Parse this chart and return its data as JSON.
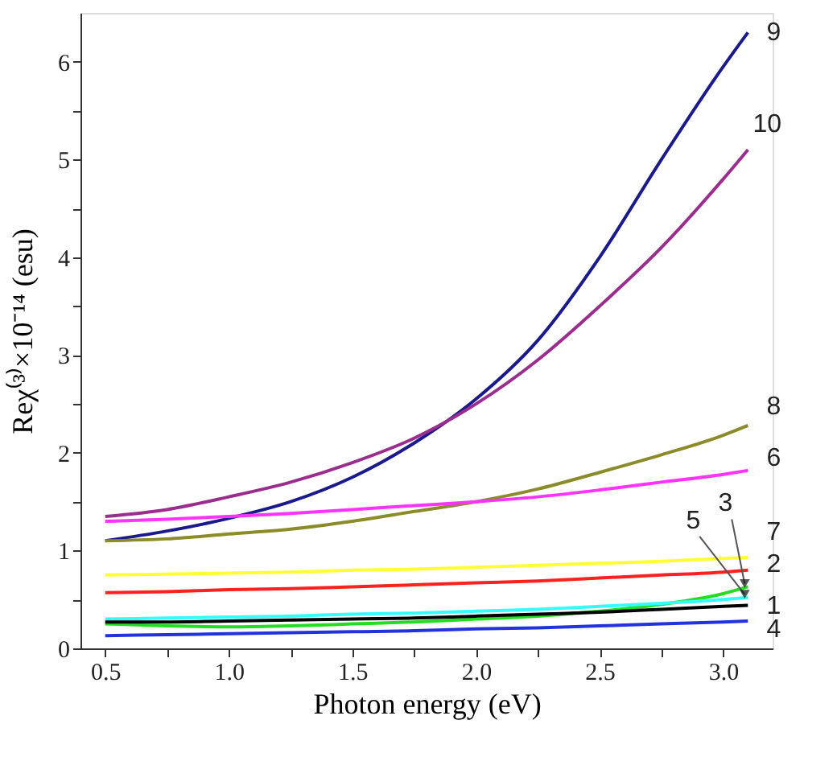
{
  "chart_data": {
    "type": "line",
    "xlabel": "Photon energy (eV)",
    "ylabel": "Reχ⁽³⁾×10⁻¹⁴ (esu)",
    "x": [
      0.5,
      0.75,
      1.0,
      1.25,
      1.5,
      1.75,
      2.0,
      2.25,
      2.5,
      2.75,
      3.0,
      3.1
    ],
    "series": [
      {
        "name": "9",
        "color": "#1a1a8c",
        "values": [
          1.1,
          1.2,
          1.33,
          1.5,
          1.75,
          2.1,
          2.55,
          3.15,
          4.0,
          5.0,
          5.95,
          6.3
        ]
      },
      {
        "name": "10",
        "color": "#9b2d8f",
        "values": [
          1.35,
          1.42,
          1.55,
          1.7,
          1.9,
          2.15,
          2.5,
          2.95,
          3.5,
          4.1,
          4.8,
          5.1
        ]
      },
      {
        "name": "8",
        "color": "#8b8b2a",
        "values": [
          1.1,
          1.12,
          1.17,
          1.22,
          1.3,
          1.4,
          1.5,
          1.63,
          1.8,
          1.98,
          2.18,
          2.28
        ]
      },
      {
        "name": "6",
        "color": "#ff33ff",
        "values": [
          1.3,
          1.32,
          1.35,
          1.38,
          1.42,
          1.46,
          1.5,
          1.55,
          1.62,
          1.7,
          1.78,
          1.82
        ]
      },
      {
        "name": "7",
        "color": "#ffff33",
        "values": [
          0.75,
          0.76,
          0.77,
          0.78,
          0.8,
          0.81,
          0.83,
          0.85,
          0.87,
          0.89,
          0.92,
          0.93
        ]
      },
      {
        "name": "2",
        "color": "#ff2020",
        "values": [
          0.57,
          0.58,
          0.6,
          0.61,
          0.63,
          0.65,
          0.67,
          0.69,
          0.72,
          0.75,
          0.78,
          0.8
        ]
      },
      {
        "name": "3",
        "color": "#22dd22",
        "values": [
          0.25,
          0.23,
          0.22,
          0.23,
          0.25,
          0.27,
          0.3,
          0.33,
          0.38,
          0.45,
          0.56,
          0.63
        ]
      },
      {
        "name": "5",
        "color": "#33ffff",
        "values": [
          0.3,
          0.31,
          0.32,
          0.33,
          0.35,
          0.36,
          0.38,
          0.4,
          0.43,
          0.46,
          0.5,
          0.52
        ]
      },
      {
        "name": "1",
        "color": "#000000",
        "values": [
          0.27,
          0.27,
          0.28,
          0.29,
          0.3,
          0.31,
          0.33,
          0.35,
          0.37,
          0.4,
          0.43,
          0.44
        ]
      },
      {
        "name": "4",
        "color": "#2233dd",
        "values": [
          0.13,
          0.14,
          0.15,
          0.16,
          0.17,
          0.18,
          0.2,
          0.21,
          0.23,
          0.25,
          0.27,
          0.28
        ]
      }
    ],
    "xlim": [
      0.4,
      3.2
    ],
    "xticks": [
      {
        "value": 0.5,
        "label": "0.5"
      },
      {
        "value": 0.75,
        "label": null
      },
      {
        "value": 1.0,
        "label": "1.0"
      },
      {
        "value": 1.25,
        "label": null
      },
      {
        "value": 1.5,
        "label": "1.5"
      },
      {
        "value": 1.75,
        "label": null
      },
      {
        "value": 2.0,
        "label": "2.0"
      },
      {
        "value": 2.25,
        "label": null
      },
      {
        "value": 2.5,
        "label": "2.5"
      },
      {
        "value": 2.75,
        "label": null
      },
      {
        "value": 3.0,
        "label": "3.0"
      }
    ],
    "ylim": [
      0,
      6.5
    ],
    "yticks": [
      0,
      {
        "value": 0.5,
        "label": null
      },
      1,
      {
        "value": 1.5,
        "label": null
      },
      2,
      {
        "value": 2.5,
        "label": null
      },
      3,
      {
        "value": 3.5,
        "label": null
      },
      4,
      {
        "value": 4.5,
        "label": null
      },
      5,
      {
        "value": 5.5,
        "label": null
      },
      6
    ],
    "grid": false,
    "legend": false,
    "marker": "none",
    "line_style": "solid"
  }
}
